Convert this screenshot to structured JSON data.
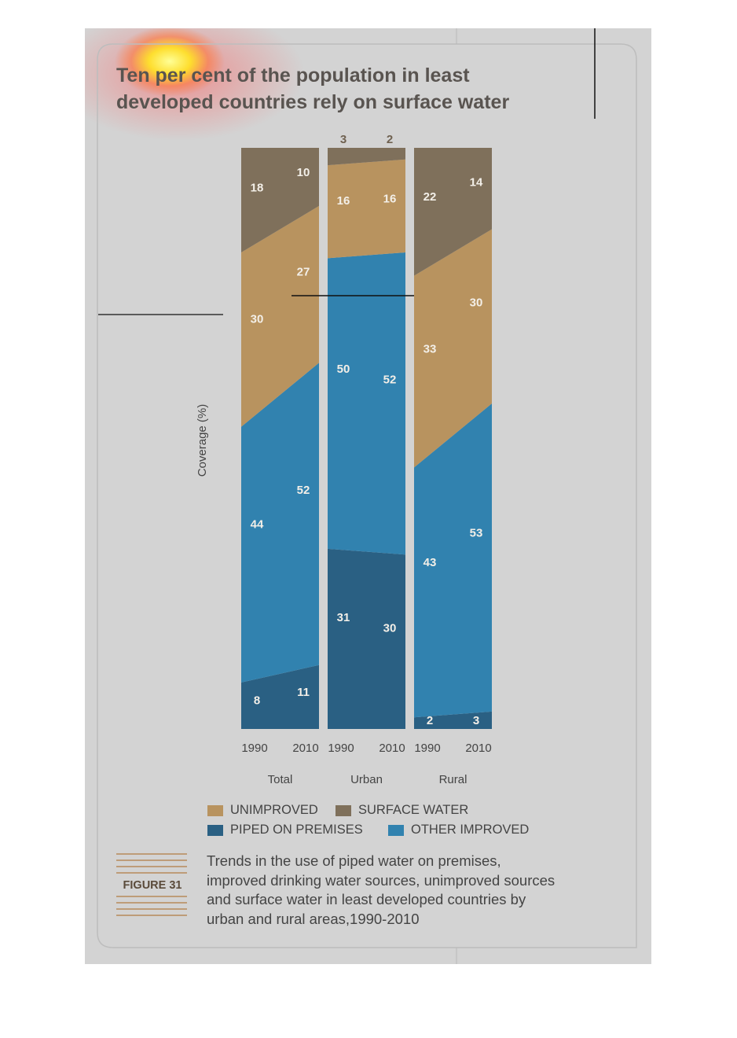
{
  "title_line1": "Ten per cent of the population in least",
  "title_line2": "developed countries rely on surface water",
  "figure_label": "FIGURE 31",
  "caption_lines": [
    "Trends in the use of piped water on premises,",
    "improved drinking water sources, unimproved sources",
    "and surface water in least developed countries by",
    "urban and rural areas,1990-2010"
  ],
  "colors": {
    "piped": "#2a6083",
    "other_improved": "#3182af",
    "unimproved": "#b8935f",
    "surface_water": "#7f705b",
    "panel": "#d3d3d3"
  },
  "chart_data": {
    "type": "area",
    "ylabel": "Coverage (%)",
    "ylim": [
      0,
      100
    ],
    "legend": [
      {
        "key": "unimproved",
        "label": "UNIMPROVED",
        "color": "#b8935f"
      },
      {
        "key": "surface_water",
        "label": "SURFACE WATER",
        "color": "#7f705b"
      },
      {
        "key": "piped",
        "label": "PIPED ON PREMISES",
        "color": "#2a6083"
      },
      {
        "key": "other_improved",
        "label": "OTHER IMPROVED",
        "color": "#3182af"
      }
    ],
    "panels": [
      {
        "group": "Total",
        "years": [
          "1990",
          "2010"
        ],
        "series": [
          {
            "key": "piped",
            "name": "PIPED ON PREMISES",
            "values": [
              8,
              11
            ]
          },
          {
            "key": "other_improved",
            "name": "OTHER IMPROVED",
            "values": [
              44,
              52
            ]
          },
          {
            "key": "unimproved",
            "name": "UNIMPROVED",
            "values": [
              30,
              27
            ]
          },
          {
            "key": "surface_water",
            "name": "SURFACE WATER",
            "values": [
              18,
              10
            ]
          }
        ]
      },
      {
        "group": "Urban",
        "years": [
          "1990",
          "2010"
        ],
        "series": [
          {
            "key": "piped",
            "name": "PIPED ON PREMISES",
            "values": [
              31,
              30
            ]
          },
          {
            "key": "other_improved",
            "name": "OTHER IMPROVED",
            "values": [
              50,
              52
            ]
          },
          {
            "key": "unimproved",
            "name": "UNIMPROVED",
            "values": [
              16,
              16
            ]
          },
          {
            "key": "surface_water",
            "name": "SURFACE WATER",
            "values": [
              3,
              2
            ]
          }
        ]
      },
      {
        "group": "Rural",
        "years": [
          "1990",
          "2010"
        ],
        "series": [
          {
            "key": "piped",
            "name": "PIPED ON PREMISES",
            "values": [
              2,
              3
            ]
          },
          {
            "key": "other_improved",
            "name": "OTHER IMPROVED",
            "values": [
              43,
              53
            ]
          },
          {
            "key": "unimproved",
            "name": "UNIMPROVED",
            "values": [
              33,
              30
            ]
          },
          {
            "key": "surface_water",
            "name": "SURFACE WATER",
            "values": [
              22,
              14
            ]
          }
        ]
      }
    ]
  }
}
